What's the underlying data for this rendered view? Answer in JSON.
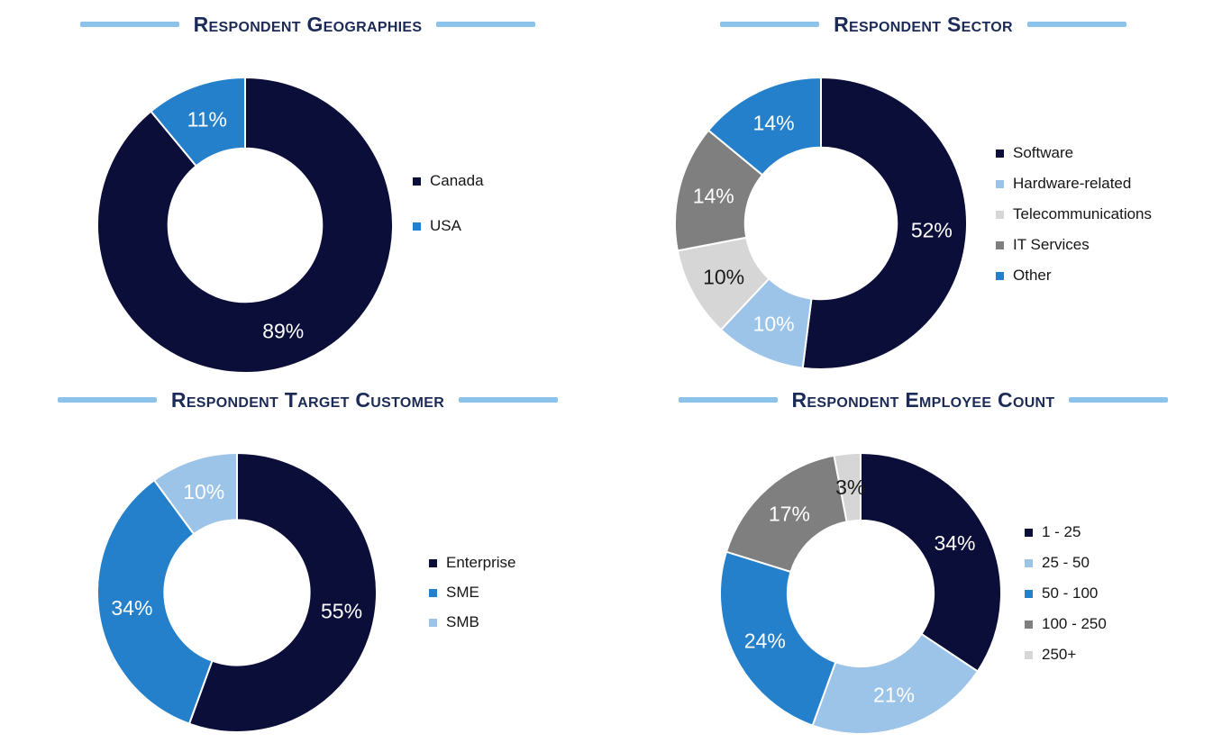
{
  "style": {
    "accent_line_color": "#8DC2EA",
    "title_color": "#1B2A57",
    "legend_text_color": "#151515",
    "slice_separator_color": "#FFFFFF",
    "palette": {
      "dark_navy": "#0B0E38",
      "blue": "#2480CB",
      "light_blue": "#9CC3E8",
      "gray": "#7F7F7F",
      "light_gray": "#D6D6D6"
    }
  },
  "chart_data": [
    {
      "type": "pie",
      "subtype": "donut",
      "title": "Respondent Geographies",
      "categories": [
        "Canada",
        "USA"
      ],
      "values": [
        89,
        11
      ],
      "labels": [
        "89%",
        "11%"
      ],
      "colors": [
        "#0B0E38",
        "#2480CB"
      ],
      "label_colors": [
        "#FFFFFF",
        "#FFFFFF"
      ],
      "legend_position": "right",
      "start_angle_deg": 0,
      "direction": "clockwise"
    },
    {
      "type": "pie",
      "subtype": "donut",
      "title": "Respondent Sector",
      "categories": [
        "Software",
        "Hardware-related",
        "Telecommunications",
        "IT Services",
        "Other"
      ],
      "values": [
        52,
        10,
        10,
        14,
        14
      ],
      "labels": [
        "52%",
        "10%",
        "10%",
        "14%",
        "14%"
      ],
      "colors": [
        "#0B0E38",
        "#9CC3E8",
        "#D6D6D6",
        "#7F7F7F",
        "#2480CB"
      ],
      "label_colors": [
        "#FFFFFF",
        "#FFFFFF",
        "#1A1A1A",
        "#FFFFFF",
        "#FFFFFF"
      ],
      "legend_position": "right",
      "start_angle_deg": 0,
      "direction": "clockwise"
    },
    {
      "type": "pie",
      "subtype": "donut",
      "title": "Respondent Target Customer",
      "categories": [
        "Enterprise",
        "SME",
        "SMB"
      ],
      "values": [
        55,
        34,
        10
      ],
      "labels": [
        "55%",
        "34%",
        "10%"
      ],
      "colors": [
        "#0B0E38",
        "#2480CB",
        "#9CC3E8"
      ],
      "label_colors": [
        "#FFFFFF",
        "#FFFFFF",
        "#FFFFFF"
      ],
      "legend_position": "right",
      "start_angle_deg": 0,
      "direction": "clockwise"
    },
    {
      "type": "pie",
      "subtype": "donut",
      "title": "Respondent Employee Count",
      "categories": [
        "1 - 25",
        "25 - 50",
        "50 - 100",
        "100 - 250",
        "250+"
      ],
      "values": [
        34,
        21,
        24,
        17,
        3
      ],
      "labels": [
        "34%",
        "21%",
        "24%",
        "17%",
        "3%"
      ],
      "colors": [
        "#0B0E38",
        "#9CC3E8",
        "#2480CB",
        "#7F7F7F",
        "#D6D6D6"
      ],
      "label_colors": [
        "#FFFFFF",
        "#FFFFFF",
        "#FFFFFF",
        "#FFFFFF",
        "#1A1A1A"
      ],
      "legend_position": "right",
      "start_angle_deg": 0,
      "direction": "clockwise"
    }
  ]
}
